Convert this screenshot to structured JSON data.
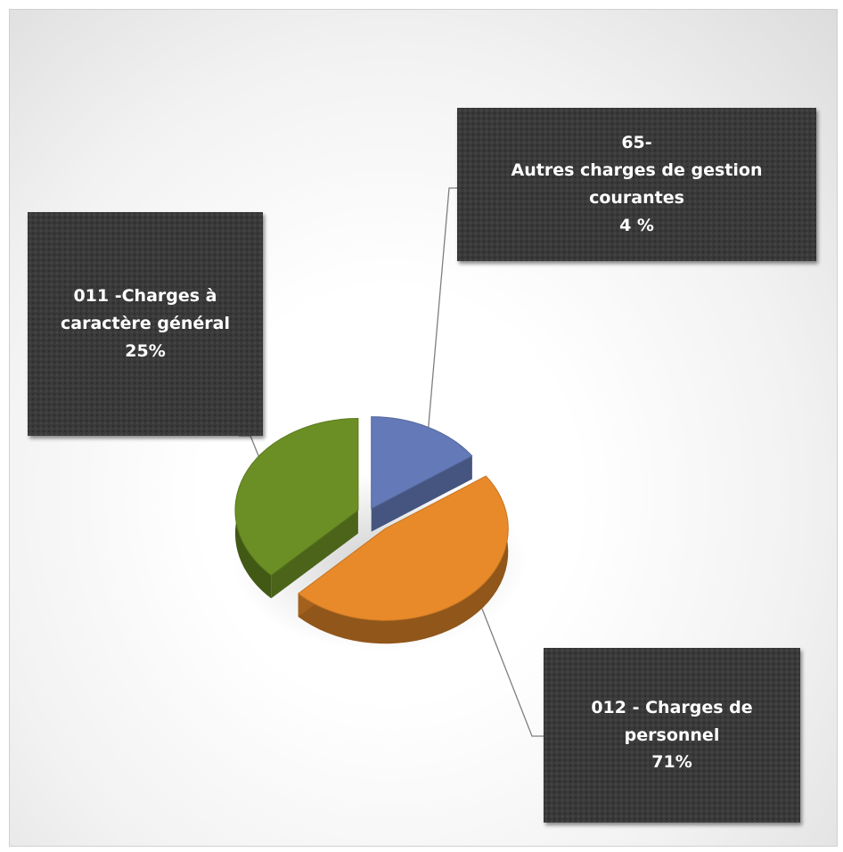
{
  "chart_data": {
    "type": "pie",
    "title": "",
    "slices": [
      {
        "code": "65-",
        "name": "Autres charges de gestion courantes",
        "value": 4,
        "color": "#6479b7",
        "label_lines": [
          "65-",
          "Autres charges de gestion",
          "courantes",
          "4 %"
        ]
      },
      {
        "code": "012",
        "name": "Charges de personnel",
        "value": 71,
        "color": "#e88a2a",
        "label_lines": [
          "012 - Charges de",
          "personnel",
          "71%"
        ]
      },
      {
        "code": "011",
        "name": "Charges à caractère général",
        "value": 25,
        "color": "#6b8f24",
        "label_lines": [
          "011 -Charges à",
          "caractère général",
          "25%"
        ]
      }
    ],
    "style": "3d-exploded",
    "legend": "none",
    "label_box_color": "#3a3a3a",
    "leader_line_color": "#7f7f7f"
  }
}
